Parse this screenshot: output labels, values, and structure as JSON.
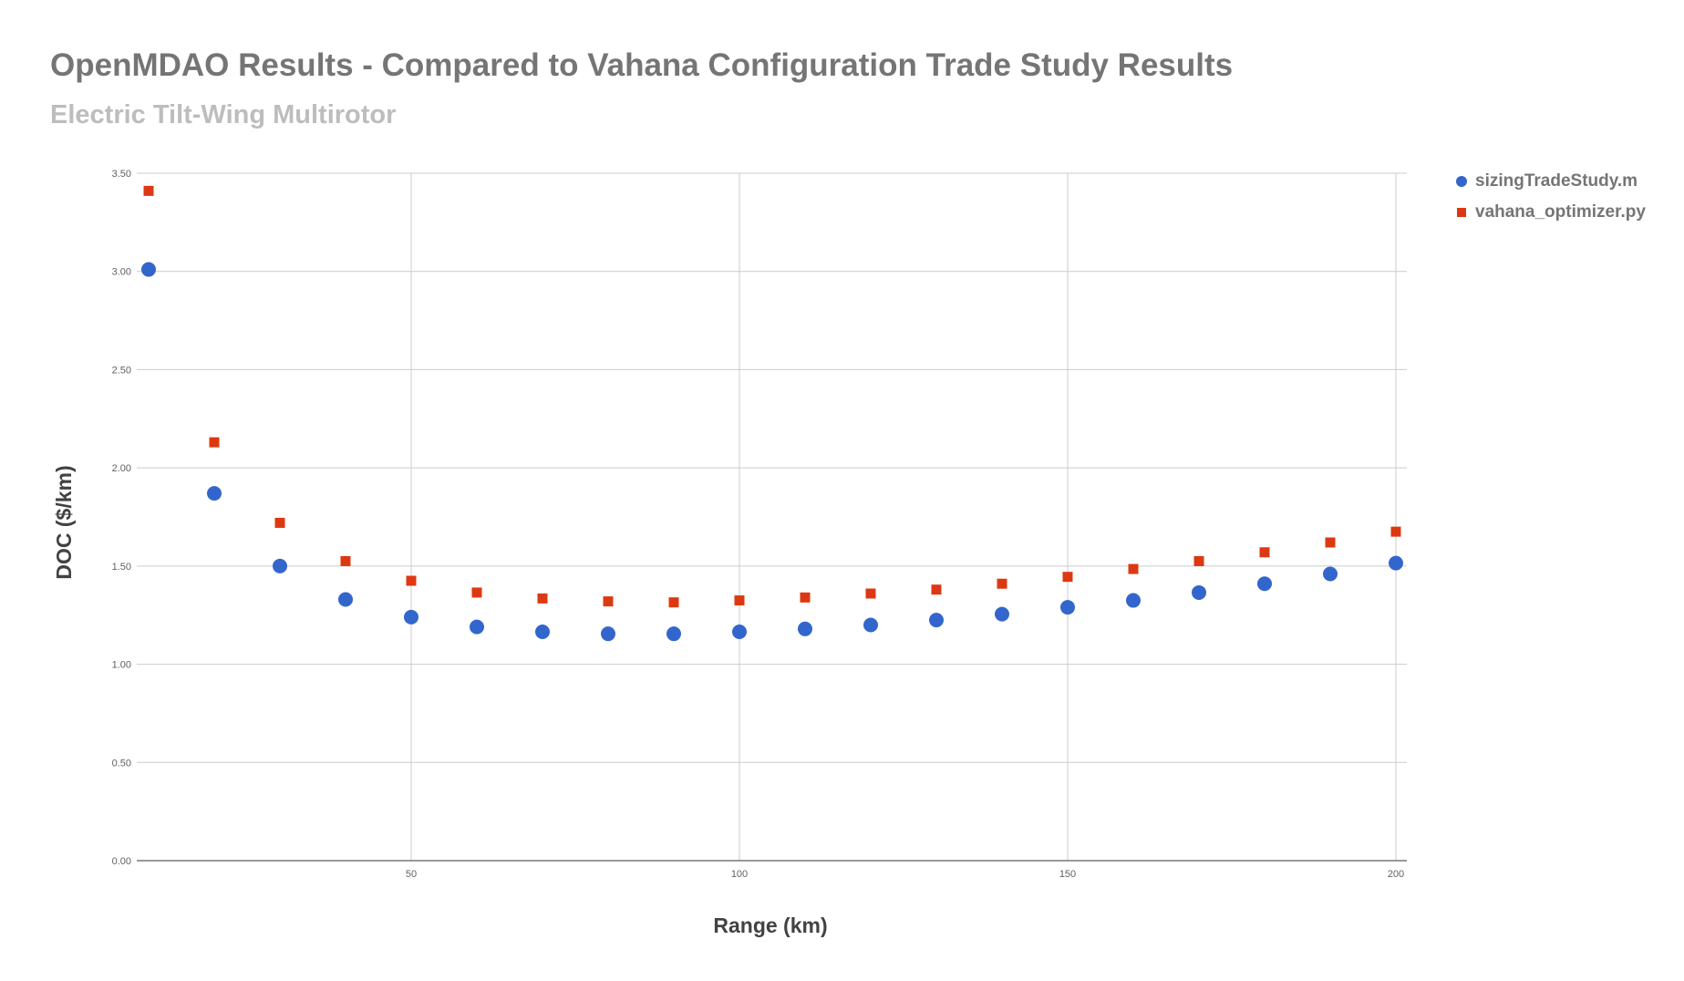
{
  "chart_data": {
    "type": "scatter",
    "title": "OpenMDAO Results - Compared to Vahana Configuration Trade Study Results",
    "subtitle": "Electric Tilt-Wing Multirotor",
    "xlabel": "Range (km)",
    "ylabel": "DOC ($/km)",
    "xlim": [
      10,
      200
    ],
    "ylim": [
      0,
      3.5
    ],
    "x_ticks": [
      "50",
      "100",
      "150",
      "200"
    ],
    "y_ticks": [
      "0.00",
      "0.50",
      "1.00",
      "1.50",
      "2.00",
      "2.50",
      "3.00",
      "3.50"
    ],
    "grid": true,
    "legend_position": "right",
    "x": [
      10,
      20,
      30,
      40,
      50,
      60,
      70,
      80,
      90,
      100,
      110,
      120,
      130,
      140,
      150,
      160,
      170,
      180,
      190,
      200
    ],
    "series": [
      {
        "name": "sizingTradeStudy.m",
        "marker": "circle",
        "color": "#3366cc",
        "values": [
          3.01,
          1.87,
          1.5,
          1.33,
          1.24,
          1.19,
          1.165,
          1.155,
          1.155,
          1.165,
          1.18,
          1.2,
          1.225,
          1.255,
          1.29,
          1.325,
          1.365,
          1.41,
          1.46,
          1.515
        ]
      },
      {
        "name": "vahana_optimizer.py",
        "marker": "square",
        "color": "#dc3912",
        "values": [
          3.41,
          2.13,
          1.72,
          1.525,
          1.425,
          1.365,
          1.335,
          1.32,
          1.315,
          1.325,
          1.34,
          1.36,
          1.38,
          1.41,
          1.445,
          1.485,
          1.525,
          1.57,
          1.62,
          1.675
        ]
      }
    ]
  }
}
